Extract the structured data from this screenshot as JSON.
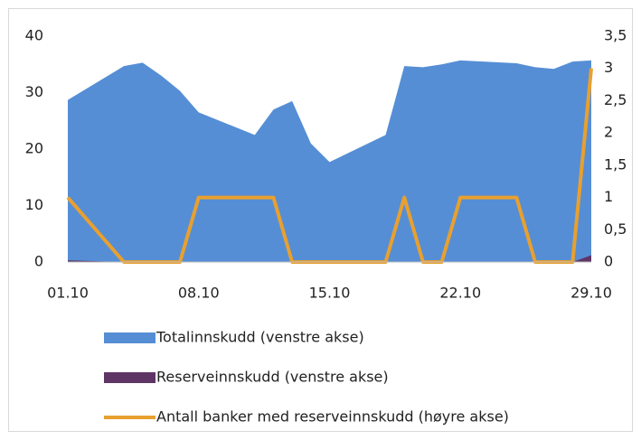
{
  "chart_data": {
    "type": "area-line",
    "x": [
      1,
      4,
      5,
      6,
      7,
      8,
      11,
      12,
      13,
      14,
      15,
      18,
      19,
      20,
      21,
      22,
      25,
      26,
      27,
      28,
      29
    ],
    "xlim": [
      1,
      29
    ],
    "xticks": [
      {
        "value": 1,
        "label": "01.10"
      },
      {
        "value": 8,
        "label": "08.10"
      },
      {
        "value": 15,
        "label": "15.10"
      },
      {
        "value": 22,
        "label": "22.10"
      },
      {
        "value": 29,
        "label": "29.10"
      }
    ],
    "ylim": [
      0,
      40
    ],
    "yticks": [
      0,
      10,
      20,
      30,
      40
    ],
    "y2lim": [
      0,
      3.5
    ],
    "y2ticks": [
      0,
      {
        "value": 0.5,
        "label": "0,5"
      },
      1,
      {
        "value": 1.5,
        "label": "1,5"
      },
      2,
      {
        "value": 2.5,
        "label": "2,5"
      },
      3,
      {
        "value": 3.5,
        "label": "3,5"
      }
    ],
    "series": [
      {
        "name": "Totalinnskudd (venstre akse)",
        "kind": "area",
        "color": "#558ed5",
        "values": [
          28.7,
          34.7,
          35.3,
          33,
          30.3,
          26.5,
          22.5,
          27,
          28.5,
          21,
          17.7,
          22.5,
          34.7,
          34.5,
          35,
          35.7,
          35.2,
          34.5,
          34.2,
          35.5,
          35.7
        ]
      },
      {
        "name": "Reserveinnskudd (venstre akse)",
        "kind": "area",
        "color": "#5f3566",
        "values": [
          0.3,
          0,
          0,
          0,
          0,
          0,
          0,
          0,
          0,
          0,
          0,
          0,
          0,
          0,
          0,
          0,
          0,
          0,
          0,
          0,
          1.2
        ]
      },
      {
        "name": "Antall banker med reserveinnskudd (høyre akse)",
        "kind": "line",
        "axis": "y2",
        "color": "#e8a02f",
        "values": [
          1,
          0,
          0,
          0,
          0,
          1,
          1,
          1,
          0,
          0,
          0,
          0,
          1,
          0,
          0,
          1,
          1,
          0,
          0,
          0,
          3
        ]
      }
    ]
  }
}
